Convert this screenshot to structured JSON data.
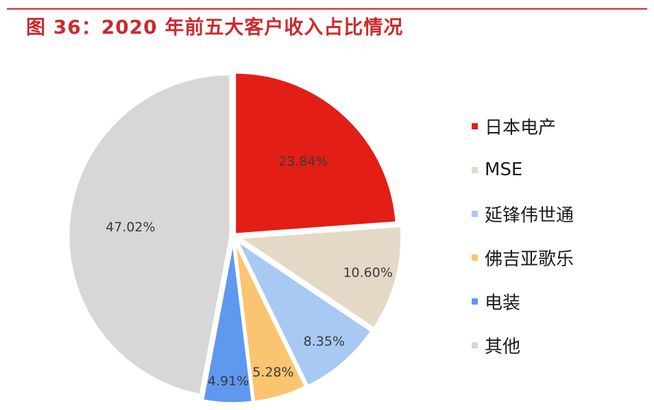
{
  "title": "图 36：2020 年前五大客户收入占比情况",
  "chart_data": {
    "type": "pie",
    "title": "图 36：2020 年前五大客户收入占比情况",
    "slices": [
      {
        "name": "日本电产",
        "value": 23.84,
        "label": "23.84%",
        "color": "#e31e16",
        "explode": 0
      },
      {
        "name": "MSE",
        "value": 10.6,
        "label": "10.60%",
        "color": "#e4d9c6",
        "explode": 1
      },
      {
        "name": "延锋伟世通",
        "value": 8.35,
        "label": "8.35%",
        "color": "#a8c9f3",
        "explode": 1
      },
      {
        "name": "佛吉亚歌乐",
        "value": 5.28,
        "label": "5.28%",
        "color": "#fbc470",
        "explode": 1
      },
      {
        "name": "电装",
        "value": 4.91,
        "label": "4.91%",
        "color": "#5f98ee",
        "explode": 1
      },
      {
        "name": "其他",
        "value": 47.02,
        "label": "47.02%",
        "color": "#d7d7d7",
        "explode": 0
      }
    ],
    "legend_position": "right"
  }
}
